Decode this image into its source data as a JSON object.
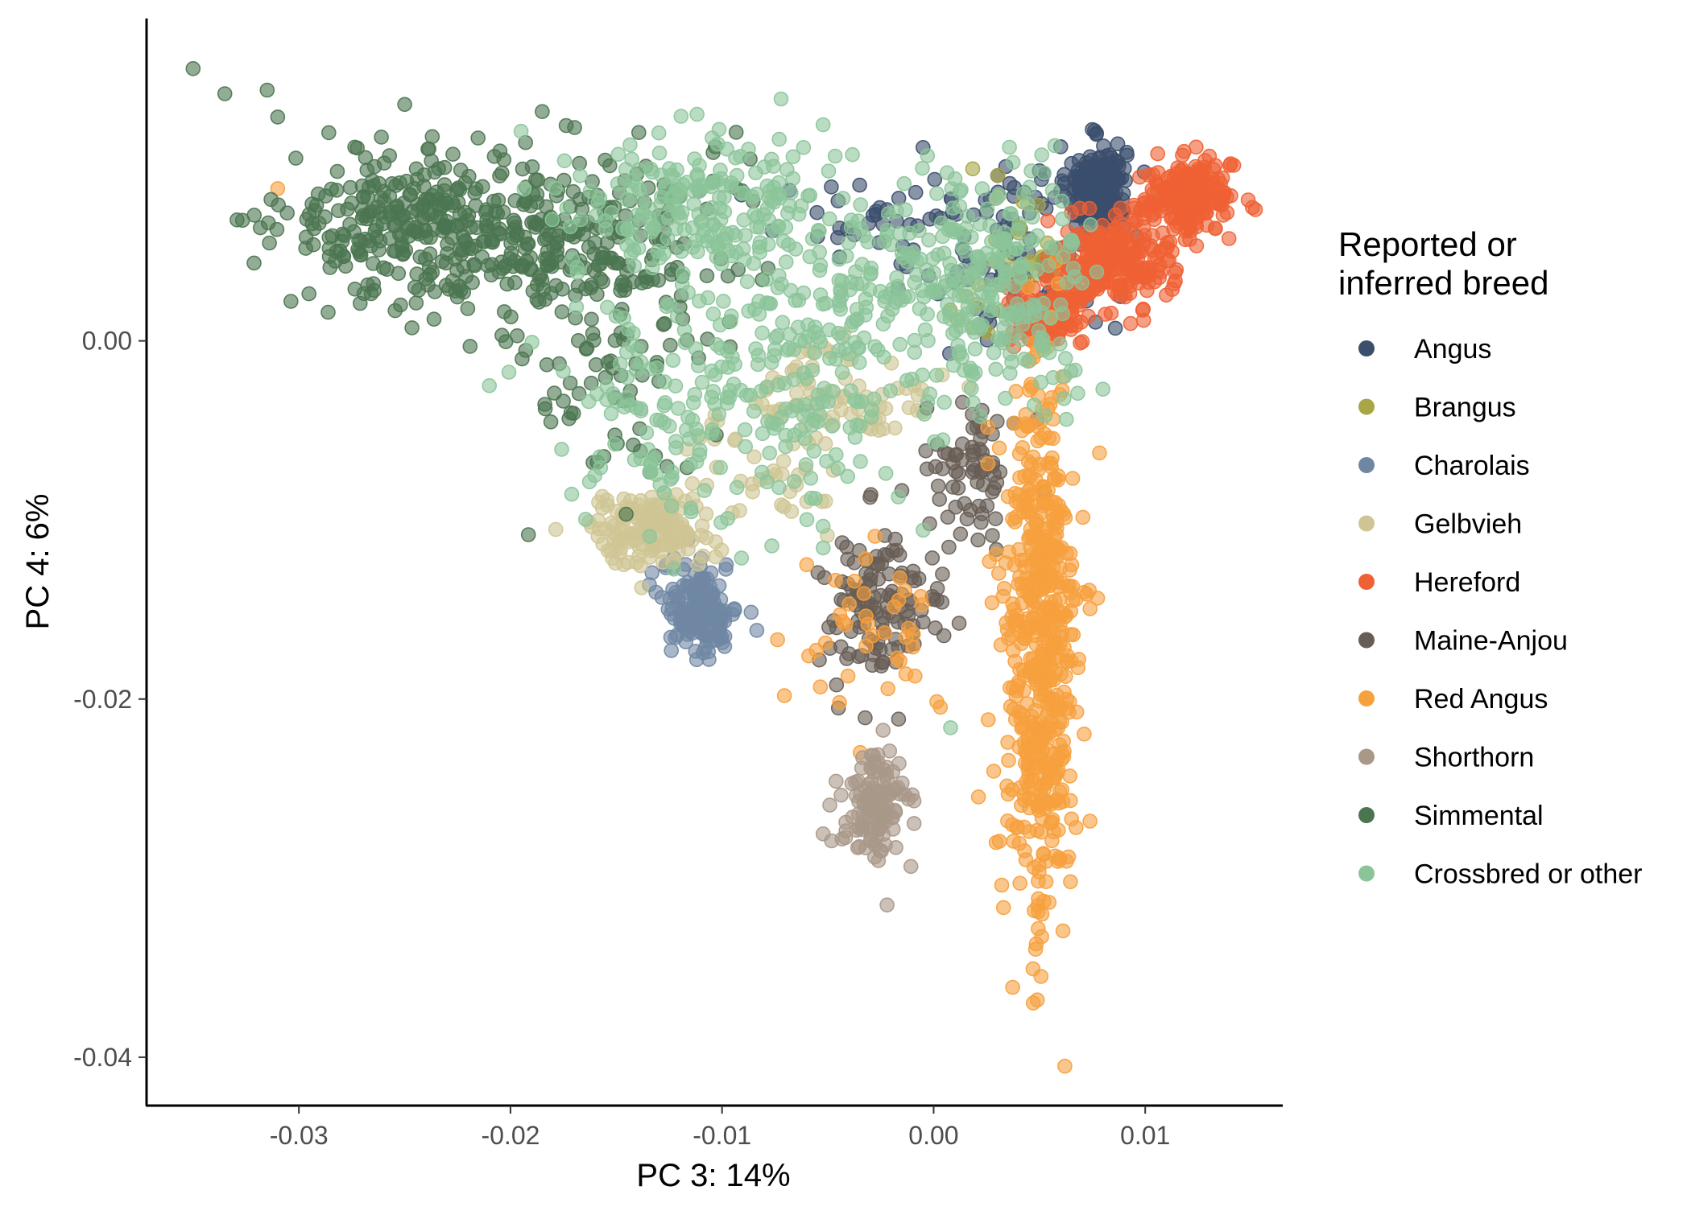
{
  "chart_data": {
    "type": "scatter",
    "title": "",
    "xlabel": "PC 3: 14%",
    "ylabel": "PC 4: 6%",
    "xlim": [
      -0.0372,
      0.0165
    ],
    "ylim": [
      -0.0427,
      0.018
    ],
    "x_ticks": [
      -0.03,
      -0.02,
      -0.01,
      0.0,
      0.01
    ],
    "x_tick_labels": [
      "-0.03",
      "-0.02",
      "-0.01",
      "0.00",
      "0.01"
    ],
    "y_ticks": [
      0.0,
      -0.02,
      -0.04
    ],
    "y_tick_labels": [
      "0.00",
      "-0.02",
      "-0.04"
    ],
    "grid": false,
    "legend": {
      "title_lines": [
        "Reported or",
        "inferred breed"
      ],
      "position": "right"
    },
    "series": [
      {
        "name": "Angus",
        "color": "#3a4e6d",
        "clusters": [
          {
            "cx": 0.0077,
            "cy": 0.0085,
            "sx": 0.0007,
            "sy": 0.0012,
            "n": 220
          },
          {
            "cx": 0.004,
            "cy": 0.005,
            "sx": 0.0022,
            "sy": 0.0025,
            "n": 90
          },
          {
            "cx": -0.003,
            "cy": 0.007,
            "sx": 0.0025,
            "sy": 0.0015,
            "n": 30
          }
        ],
        "points": [
          [
            0.0075,
            0.0118
          ],
          [
            0.0087,
            0.011
          ],
          [
            -0.0005,
            0.0108
          ],
          [
            0.005,
            0.0095
          ]
        ]
      },
      {
        "name": "Brangus",
        "color": "#a9a645",
        "clusters": [
          {
            "cx": 0.004,
            "cy": 0.004,
            "sx": 0.002,
            "sy": 0.002,
            "n": 40
          }
        ],
        "points": [
          [
            0.003,
            0.008
          ]
        ]
      },
      {
        "name": "Charolais",
        "color": "#6f87a3",
        "clusters": [
          {
            "cx": -0.011,
            "cy": -0.015,
            "sx": 0.0009,
            "sy": 0.0013,
            "n": 150
          }
        ],
        "points": [
          [
            -0.0112,
            -0.0178
          ],
          [
            -0.0098,
            -0.0125
          ]
        ]
      },
      {
        "name": "Gelbvieh",
        "color": "#cfc594",
        "clusters": [
          {
            "cx": -0.0135,
            "cy": -0.0105,
            "sx": 0.0015,
            "sy": 0.001,
            "n": 150
          },
          {
            "cx": -0.004,
            "cy": -0.003,
            "sx": 0.002,
            "sy": 0.0015,
            "n": 70
          },
          {
            "cx": -0.008,
            "cy": -0.007,
            "sx": 0.0025,
            "sy": 0.002,
            "n": 40
          }
        ],
        "points": [
          [
            -0.0158,
            -0.0105
          ],
          [
            0.003,
            0.008
          ]
        ]
      },
      {
        "name": "Hereford",
        "color": "#ef6134",
        "clusters": [
          {
            "cx": 0.012,
            "cy": 0.008,
            "sx": 0.0011,
            "sy": 0.001,
            "n": 200
          },
          {
            "cx": 0.0085,
            "cy": 0.0045,
            "sx": 0.0014,
            "sy": 0.0013,
            "n": 220
          },
          {
            "cx": 0.0055,
            "cy": 0.0015,
            "sx": 0.001,
            "sy": 0.0009,
            "n": 110
          }
        ],
        "points": [
          [
            0.014,
            0.0098
          ],
          [
            0.0045,
            0.001
          ]
        ]
      },
      {
        "name": "Maine-Anjou",
        "color": "#675d55",
        "clusters": [
          {
            "cx": -0.0025,
            "cy": -0.015,
            "sx": 0.0015,
            "sy": 0.002,
            "n": 120
          },
          {
            "cx": 0.002,
            "cy": -0.007,
            "sx": 0.0012,
            "sy": 0.0018,
            "n": 70
          }
        ],
        "points": [
          [
            -0.0045,
            -0.0205
          ],
          [
            0.003,
            -0.0045
          ]
        ]
      },
      {
        "name": "Red Angus",
        "color": "#f6a03e",
        "clusters": [
          {
            "cx": 0.005,
            "cy": -0.0175,
            "sx": 0.0009,
            "sy": 0.008,
            "n": 550
          },
          {
            "cx": -0.0025,
            "cy": -0.0165,
            "sx": 0.002,
            "sy": 0.002,
            "n": 40
          }
        ],
        "points": [
          [
            0.0062,
            -0.0405
          ],
          [
            0.0049,
            -0.0368
          ],
          [
            -0.031,
            0.0085
          ],
          [
            -0.006,
            -0.0125
          ]
        ]
      },
      {
        "name": "Shorthorn",
        "color": "#a99888",
        "clusters": [
          {
            "cx": -0.0028,
            "cy": -0.026,
            "sx": 0.0008,
            "sy": 0.0015,
            "n": 120
          }
        ],
        "points": [
          [
            -0.0022,
            -0.0315
          ]
        ]
      },
      {
        "name": "Simmental",
        "color": "#4b7550",
        "clusters": [
          {
            "cx": -0.024,
            "cy": 0.0065,
            "sx": 0.0035,
            "sy": 0.002,
            "n": 300
          },
          {
            "cx": -0.017,
            "cy": 0.0055,
            "sx": 0.0035,
            "sy": 0.003,
            "n": 230
          },
          {
            "cx": -0.015,
            "cy": -0.002,
            "sx": 0.0025,
            "sy": 0.003,
            "n": 60
          }
        ],
        "points": [
          [
            -0.035,
            0.0152
          ],
          [
            -0.0335,
            0.0138
          ],
          [
            -0.0315,
            0.014
          ],
          [
            -0.025,
            0.0132
          ],
          [
            -0.031,
            0.0125
          ],
          [
            -0.0185,
            0.0128
          ]
        ]
      },
      {
        "name": "Crossbred or other",
        "color": "#8cc49a",
        "clusters": [
          {
            "cx": -0.011,
            "cy": 0.0075,
            "sx": 0.003,
            "sy": 0.002,
            "n": 200
          },
          {
            "cx": -0.009,
            "cy": -0.003,
            "sx": 0.004,
            "sy": 0.0035,
            "n": 260
          },
          {
            "cx": 0.003,
            "cy": 0.003,
            "sx": 0.0025,
            "sy": 0.003,
            "n": 220
          },
          {
            "cx": -0.003,
            "cy": 0.004,
            "sx": 0.003,
            "sy": 0.0025,
            "n": 110
          }
        ],
        "points": [
          [
            -0.0195,
            0.0117
          ],
          [
            0.008,
            -0.0027
          ],
          [
            -0.021,
            -0.0025
          ],
          [
            0.0008,
            -0.0216
          ]
        ]
      }
    ]
  }
}
